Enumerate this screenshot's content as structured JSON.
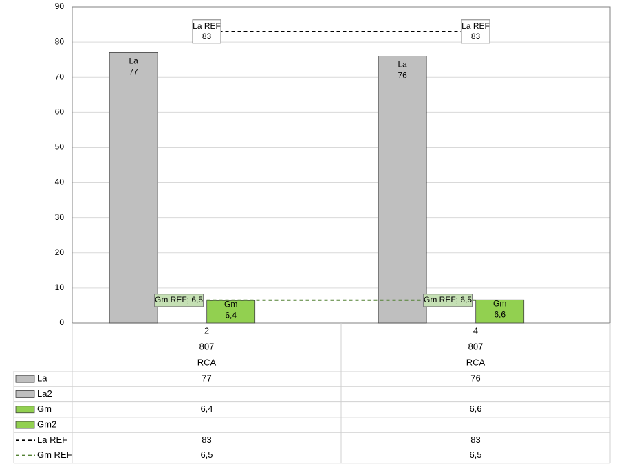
{
  "chart_data": {
    "type": "bar",
    "categories": [
      [
        "2",
        "807",
        "RCA"
      ],
      [
        "4",
        "807",
        "RCA"
      ]
    ],
    "ylim": [
      0,
      90
    ],
    "yticks": [
      0,
      10,
      20,
      30,
      40,
      50,
      60,
      70,
      80,
      90
    ],
    "grid": true,
    "series": [
      {
        "name": "La",
        "type": "bar",
        "color": "#bfbfbf",
        "values": [
          77,
          76
        ]
      },
      {
        "name": "La2",
        "type": "bar",
        "color": "#bfbfbf",
        "values": [
          null,
          null
        ]
      },
      {
        "name": "Gm",
        "type": "bar",
        "color": "#92d050",
        "values": [
          6.4,
          6.6
        ],
        "value_labels": [
          "6,4",
          "6,6"
        ]
      },
      {
        "name": "Gm2",
        "type": "bar",
        "color": "#92d050",
        "values": [
          null,
          null
        ]
      },
      {
        "name": "La REF",
        "type": "line",
        "color": "#000000",
        "values": [
          83,
          83
        ]
      },
      {
        "name": "Gm REF",
        "type": "line",
        "color": "#548235",
        "values": [
          6.5,
          6.5
        ],
        "value_labels": [
          "6,5",
          "6,5"
        ],
        "label_separator": "; "
      }
    ]
  }
}
